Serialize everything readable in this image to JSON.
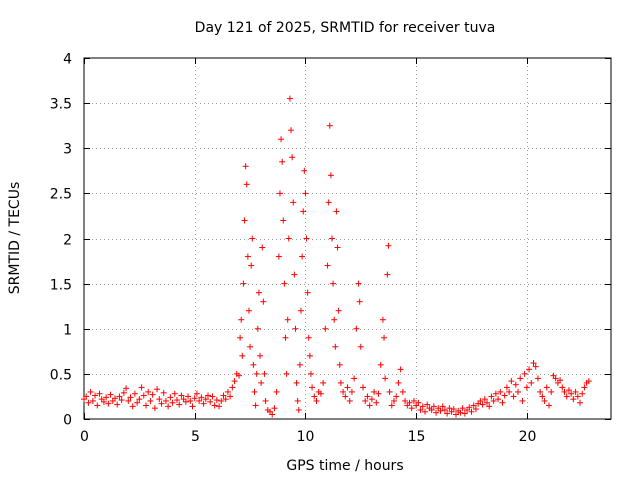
{
  "chart_data": {
    "type": "scatter",
    "title": "Day 121 of 2025, SRMTID for receiver tuva",
    "xlabel": "GPS time / hours",
    "ylabel": "SRMTID / TECUs",
    "xlim": [
      0,
      23.8
    ],
    "ylim": [
      0,
      4
    ],
    "xticks": [
      0,
      5,
      10,
      15,
      20
    ],
    "yticks": [
      0,
      0.5,
      1,
      1.5,
      2,
      2.5,
      3,
      3.5,
      4
    ],
    "xtick_labels": [
      "0",
      "5",
      "10",
      "15",
      "20"
    ],
    "ytick_labels": [
      "0",
      "0.5",
      "1",
      "1.5",
      "2",
      "2.5",
      "3",
      "3.5",
      "4"
    ],
    "grid": true,
    "marker": "+",
    "color": "#ff0000",
    "series": [
      {
        "name": "SRMTID",
        "points": [
          [
            0.0,
            0.22
          ],
          [
            0.1,
            0.25
          ],
          [
            0.2,
            0.18
          ],
          [
            0.3,
            0.3
          ],
          [
            0.4,
            0.2
          ],
          [
            0.5,
            0.26
          ],
          [
            0.6,
            0.15
          ],
          [
            0.7,
            0.28
          ],
          [
            0.8,
            0.22
          ],
          [
            0.9,
            0.19
          ],
          [
            1.0,
            0.24
          ],
          [
            1.1,
            0.17
          ],
          [
            1.2,
            0.27
          ],
          [
            1.3,
            0.2
          ],
          [
            1.4,
            0.23
          ],
          [
            1.5,
            0.16
          ],
          [
            1.6,
            0.25
          ],
          [
            1.7,
            0.21
          ],
          [
            1.8,
            0.29
          ],
          [
            1.9,
            0.34
          ],
          [
            2.0,
            0.2
          ],
          [
            2.1,
            0.24
          ],
          [
            2.2,
            0.14
          ],
          [
            2.3,
            0.28
          ],
          [
            2.4,
            0.18
          ],
          [
            2.5,
            0.22
          ],
          [
            2.6,
            0.35
          ],
          [
            2.7,
            0.26
          ],
          [
            2.8,
            0.15
          ],
          [
            2.9,
            0.3
          ],
          [
            3.0,
            0.2
          ],
          [
            3.1,
            0.27
          ],
          [
            3.2,
            0.12
          ],
          [
            3.3,
            0.33
          ],
          [
            3.4,
            0.22
          ],
          [
            3.5,
            0.17
          ],
          [
            3.6,
            0.29
          ],
          [
            3.7,
            0.2
          ],
          [
            3.8,
            0.14
          ],
          [
            3.9,
            0.24
          ],
          [
            4.0,
            0.18
          ],
          [
            4.1,
            0.28
          ],
          [
            4.2,
            0.21
          ],
          [
            4.3,
            0.16
          ],
          [
            4.4,
            0.26
          ],
          [
            4.5,
            0.22
          ],
          [
            4.6,
            0.19
          ],
          [
            4.7,
            0.25
          ],
          [
            4.8,
            0.2
          ],
          [
            4.9,
            0.14
          ],
          [
            5.0,
            0.23
          ],
          [
            5.1,
            0.28
          ],
          [
            5.2,
            0.2
          ],
          [
            5.3,
            0.24
          ],
          [
            5.4,
            0.17
          ],
          [
            5.5,
            0.22
          ],
          [
            5.6,
            0.26
          ],
          [
            5.7,
            0.19
          ],
          [
            5.8,
            0.25
          ],
          [
            5.9,
            0.15
          ],
          [
            6.0,
            0.21
          ],
          [
            6.1,
            0.14
          ],
          [
            6.2,
            0.2
          ],
          [
            6.3,
            0.26
          ],
          [
            6.4,
            0.22
          ],
          [
            6.5,
            0.3
          ],
          [
            6.6,
            0.25
          ],
          [
            6.7,
            0.35
          ],
          [
            6.8,
            0.42
          ],
          [
            6.9,
            0.5
          ],
          [
            7.0,
            0.48
          ],
          [
            7.05,
            0.9
          ],
          [
            7.1,
            1.1
          ],
          [
            7.15,
            0.7
          ],
          [
            7.2,
            1.5
          ],
          [
            7.25,
            2.2
          ],
          [
            7.3,
            2.8
          ],
          [
            7.35,
            2.6
          ],
          [
            7.4,
            1.8
          ],
          [
            7.45,
            1.2
          ],
          [
            7.5,
            0.8
          ],
          [
            7.55,
            1.7
          ],
          [
            7.6,
            2.0
          ],
          [
            7.65,
            0.6
          ],
          [
            7.7,
            0.3
          ],
          [
            7.75,
            0.15
          ],
          [
            7.8,
            0.5
          ],
          [
            7.85,
            1.0
          ],
          [
            7.9,
            1.4
          ],
          [
            7.95,
            0.7
          ],
          [
            8.0,
            0.4
          ],
          [
            8.05,
            1.9
          ],
          [
            8.1,
            1.3
          ],
          [
            8.15,
            0.5
          ],
          [
            8.2,
            0.2
          ],
          [
            8.3,
            0.1
          ],
          [
            8.4,
            0.08
          ],
          [
            8.5,
            0.05
          ],
          [
            8.6,
            0.12
          ],
          [
            8.7,
            0.3
          ],
          [
            8.8,
            1.8
          ],
          [
            8.85,
            2.5
          ],
          [
            8.9,
            3.1
          ],
          [
            8.95,
            2.85
          ],
          [
            9.0,
            2.2
          ],
          [
            9.05,
            1.5
          ],
          [
            9.1,
            0.9
          ],
          [
            9.15,
            0.5
          ],
          [
            9.2,
            1.1
          ],
          [
            9.25,
            2.0
          ],
          [
            9.3,
            3.55
          ],
          [
            9.35,
            3.2
          ],
          [
            9.4,
            2.9
          ],
          [
            9.45,
            2.4
          ],
          [
            9.5,
            1.6
          ],
          [
            9.55,
            1.0
          ],
          [
            9.6,
            0.4
          ],
          [
            9.65,
            0.2
          ],
          [
            9.7,
            0.1
          ],
          [
            9.75,
            0.6
          ],
          [
            9.8,
            1.2
          ],
          [
            9.85,
            1.8
          ],
          [
            9.9,
            2.3
          ],
          [
            9.95,
            2.75
          ],
          [
            10.0,
            2.5
          ],
          [
            10.05,
            2.0
          ],
          [
            10.1,
            1.4
          ],
          [
            10.15,
            0.9
          ],
          [
            10.2,
            0.7
          ],
          [
            10.25,
            0.5
          ],
          [
            10.3,
            0.35
          ],
          [
            10.4,
            0.25
          ],
          [
            10.5,
            0.2
          ],
          [
            10.6,
            0.3
          ],
          [
            10.7,
            0.28
          ],
          [
            10.8,
            0.4
          ],
          [
            10.9,
            1.0
          ],
          [
            11.0,
            1.7
          ],
          [
            11.05,
            2.4
          ],
          [
            11.1,
            3.25
          ],
          [
            11.15,
            2.7
          ],
          [
            11.2,
            2.0
          ],
          [
            11.25,
            1.5
          ],
          [
            11.3,
            1.1
          ],
          [
            11.35,
            0.8
          ],
          [
            11.4,
            2.3
          ],
          [
            11.45,
            1.9
          ],
          [
            11.5,
            1.2
          ],
          [
            11.55,
            0.6
          ],
          [
            11.6,
            0.4
          ],
          [
            11.7,
            0.3
          ],
          [
            11.8,
            0.25
          ],
          [
            11.9,
            0.35
          ],
          [
            12.0,
            0.2
          ],
          [
            12.1,
            0.3
          ],
          [
            12.2,
            0.45
          ],
          [
            12.3,
            1.0
          ],
          [
            12.4,
            1.5
          ],
          [
            12.45,
            1.3
          ],
          [
            12.5,
            0.8
          ],
          [
            12.6,
            0.35
          ],
          [
            12.7,
            0.2
          ],
          [
            12.8,
            0.25
          ],
          [
            12.9,
            0.15
          ],
          [
            13.0,
            0.22
          ],
          [
            13.1,
            0.3
          ],
          [
            13.2,
            0.18
          ],
          [
            13.3,
            0.28
          ],
          [
            13.4,
            0.6
          ],
          [
            13.5,
            1.1
          ],
          [
            13.55,
            0.9
          ],
          [
            13.6,
            0.45
          ],
          [
            13.7,
            1.6
          ],
          [
            13.75,
            1.92
          ],
          [
            13.8,
            0.3
          ],
          [
            13.9,
            0.15
          ],
          [
            14.0,
            0.2
          ],
          [
            14.1,
            0.25
          ],
          [
            14.2,
            0.4
          ],
          [
            14.3,
            0.55
          ],
          [
            14.4,
            0.3
          ],
          [
            14.5,
            0.2
          ],
          [
            14.6,
            0.15
          ],
          [
            14.7,
            0.18
          ],
          [
            14.8,
            0.12
          ],
          [
            14.9,
            0.2
          ],
          [
            15.0,
            0.15
          ],
          [
            15.1,
            0.18
          ],
          [
            15.2,
            0.1
          ],
          [
            15.3,
            0.14
          ],
          [
            15.4,
            0.08
          ],
          [
            15.5,
            0.16
          ],
          [
            15.6,
            0.12
          ],
          [
            15.7,
            0.1
          ],
          [
            15.8,
            0.14
          ],
          [
            15.9,
            0.07
          ],
          [
            16.0,
            0.12
          ],
          [
            16.1,
            0.09
          ],
          [
            16.2,
            0.14
          ],
          [
            16.3,
            0.1
          ],
          [
            16.4,
            0.06
          ],
          [
            16.5,
            0.12
          ],
          [
            16.6,
            0.08
          ],
          [
            16.7,
            0.11
          ],
          [
            16.8,
            0.05
          ],
          [
            16.9,
            0.09
          ],
          [
            17.0,
            0.07
          ],
          [
            17.1,
            0.12
          ],
          [
            17.2,
            0.06
          ],
          [
            17.3,
            0.1
          ],
          [
            17.4,
            0.13
          ],
          [
            17.5,
            0.08
          ],
          [
            17.6,
            0.15
          ],
          [
            17.7,
            0.11
          ],
          [
            17.8,
            0.17
          ],
          [
            17.9,
            0.2
          ],
          [
            18.0,
            0.16
          ],
          [
            18.1,
            0.22
          ],
          [
            18.2,
            0.18
          ],
          [
            18.3,
            0.14
          ],
          [
            18.4,
            0.25
          ],
          [
            18.5,
            0.2
          ],
          [
            18.6,
            0.28
          ],
          [
            18.7,
            0.22
          ],
          [
            18.8,
            0.3
          ],
          [
            18.9,
            0.18
          ],
          [
            19.0,
            0.26
          ],
          [
            19.1,
            0.35
          ],
          [
            19.2,
            0.3
          ],
          [
            19.3,
            0.42
          ],
          [
            19.4,
            0.25
          ],
          [
            19.5,
            0.38
          ],
          [
            19.6,
            0.3
          ],
          [
            19.7,
            0.45
          ],
          [
            19.8,
            0.2
          ],
          [
            19.9,
            0.5
          ],
          [
            20.0,
            0.35
          ],
          [
            20.1,
            0.55
          ],
          [
            20.2,
            0.4
          ],
          [
            20.3,
            0.62
          ],
          [
            20.4,
            0.58
          ],
          [
            20.5,
            0.45
          ],
          [
            20.6,
            0.3
          ],
          [
            20.7,
            0.25
          ],
          [
            20.8,
            0.2
          ],
          [
            20.9,
            0.35
          ],
          [
            21.0,
            0.15
          ],
          [
            21.1,
            0.3
          ],
          [
            21.2,
            0.48
          ],
          [
            21.3,
            0.45
          ],
          [
            21.4,
            0.4
          ],
          [
            21.5,
            0.43
          ],
          [
            21.6,
            0.35
          ],
          [
            21.7,
            0.3
          ],
          [
            21.8,
            0.25
          ],
          [
            21.9,
            0.32
          ],
          [
            22.0,
            0.28
          ],
          [
            22.1,
            0.22
          ],
          [
            22.2,
            0.3
          ],
          [
            22.3,
            0.25
          ],
          [
            22.4,
            0.18
          ],
          [
            22.5,
            0.28
          ],
          [
            22.6,
            0.35
          ],
          [
            22.7,
            0.4
          ],
          [
            22.8,
            0.42
          ]
        ]
      }
    ]
  }
}
